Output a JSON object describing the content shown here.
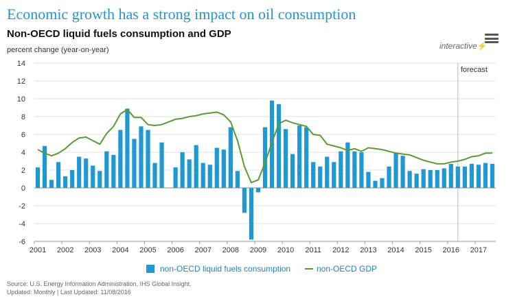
{
  "header": {
    "headline": "Economic growth has a strong impact on oil consumption",
    "interactive_label": "interactive",
    "menu_icon": "hamburger-menu-icon",
    "bolt_icon": "lightning-bolt-icon"
  },
  "colors": {
    "bar": "#1f98d3",
    "line": "#5a9a32",
    "headline": "#2a93c9",
    "grid": "#e2e2e2",
    "forecast_line": "#b8b8b8"
  },
  "chart_data": {
    "type": "bar",
    "title": "Non-OECD liquid fuels consumption and GDP",
    "ylabel": "percent change (year-on-year)",
    "xlabel": "",
    "ylim": [
      -6,
      14
    ],
    "yticks": [
      "14",
      "12",
      "10",
      "8",
      "6",
      "4",
      "2",
      "0",
      "-2",
      "-4",
      "-6"
    ],
    "ytick_values": [
      14,
      12,
      10,
      8,
      6,
      4,
      2,
      0,
      -2,
      -4,
      -6
    ],
    "grid": true,
    "year_labels": [
      "2001",
      "2002",
      "2003",
      "2004",
      "2005",
      "2006",
      "2007",
      "2008",
      "2009",
      "2010",
      "2011",
      "2012",
      "2013",
      "2014",
      "2015",
      "2016",
      "2017"
    ],
    "forecast_label": "forecast",
    "forecast_start_quarter_index": 61.5,
    "legend_position": "bottom-center",
    "series": [
      {
        "name": "non-OECD liquid fuels consumption",
        "type": "bar",
        "values": [
          2.3,
          4.7,
          0.9,
          2.9,
          1.3,
          2.0,
          3.5,
          3.3,
          2.5,
          1.9,
          4.1,
          3.7,
          6.5,
          8.9,
          5.5,
          6.9,
          6.5,
          2.8,
          5.1,
          0.0,
          2.3,
          4.0,
          3.2,
          4.8,
          2.8,
          2.6,
          4.5,
          4.3,
          6.8,
          1.9,
          -2.8,
          -5.8,
          -0.5,
          6.8,
          9.8,
          9.4,
          6.6,
          3.8,
          7.0,
          6.8,
          2.9,
          2.4,
          3.5,
          2.9,
          4.1,
          5.1,
          4.1,
          4.0,
          1.8,
          0.8,
          1.1,
          2.4,
          3.9,
          3.6,
          1.9,
          1.6,
          2.1,
          2.0,
          2.0,
          2.2,
          2.7,
          2.4,
          2.4,
          2.7,
          2.6,
          2.8,
          2.7
        ]
      },
      {
        "name": "non-OECD GDP",
        "type": "line",
        "values": [
          4.3,
          3.9,
          3.6,
          3.9,
          4.4,
          5.1,
          5.6,
          5.7,
          5.3,
          4.9,
          6.1,
          6.9,
          8.3,
          8.8,
          7.9,
          7.9,
          7.1,
          7.0,
          7.1,
          7.4,
          7.7,
          7.8,
          8.0,
          8.1,
          8.3,
          8.4,
          8.5,
          8.2,
          7.4,
          5.3,
          2.4,
          0.6,
          0.9,
          2.8,
          5.1,
          7.2,
          7.6,
          7.3,
          7.1,
          6.9,
          6.0,
          5.9,
          4.9,
          4.7,
          4.5,
          4.2,
          4.4,
          4.1,
          4.5,
          4.4,
          4.3,
          4.1,
          3.9,
          3.8,
          3.7,
          3.4,
          3.1,
          2.9,
          2.7,
          2.7,
          2.9,
          3.0,
          3.2,
          3.5,
          3.6,
          3.9,
          3.9
        ]
      }
    ]
  },
  "footer": {
    "source": "Source: U.S. Energy Information Administration, IHS Global Insight.",
    "updated": "Updated: Monthly | Last Updated: 11/08/2016"
  }
}
